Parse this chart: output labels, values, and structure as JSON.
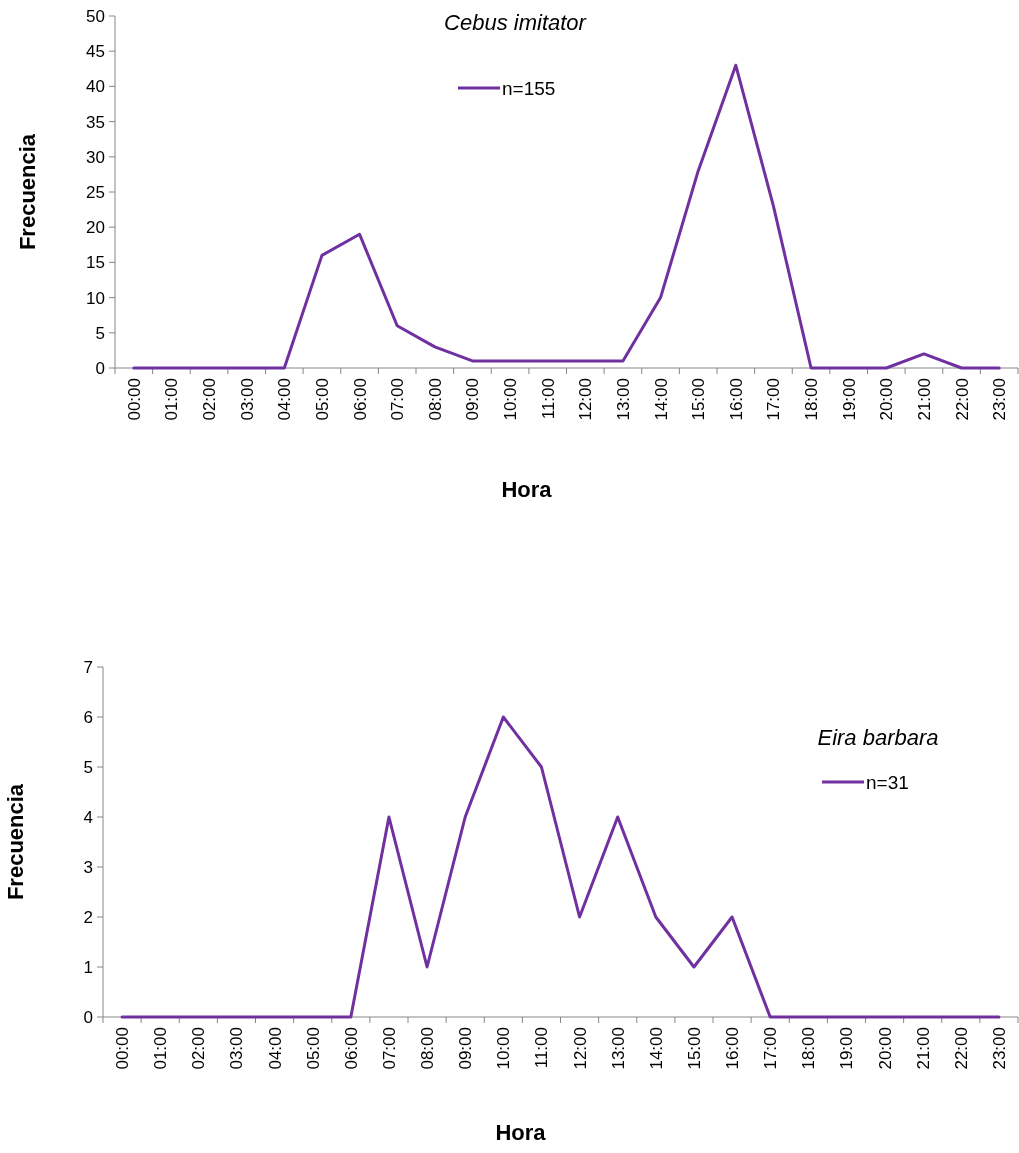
{
  "chart_data": [
    {
      "type": "line",
      "title": "Cebus imitator",
      "xlabel": "Hora",
      "ylabel": "Frecuencia",
      "categories": [
        "00:00",
        "01:00",
        "02:00",
        "03:00",
        "04:00",
        "05:00",
        "06:00",
        "07:00",
        "08:00",
        "09:00",
        "10:00",
        "11:00",
        "12:00",
        "13:00",
        "14:00",
        "15:00",
        "16:00",
        "17:00",
        "18:00",
        "19:00",
        "20:00",
        "21:00",
        "22:00",
        "23:00"
      ],
      "series": [
        {
          "name": "n=155",
          "color": "#7030a0",
          "values": [
            0,
            0,
            0,
            0,
            0,
            16,
            19,
            6,
            3,
            1,
            1,
            1,
            1,
            1,
            10,
            28,
            43,
            23,
            0,
            0,
            0,
            2,
            0,
            0
          ]
        }
      ],
      "ylim": [
        0,
        50
      ],
      "yticks": [
        0,
        5,
        10,
        15,
        20,
        25,
        30,
        35,
        40,
        45,
        50
      ],
      "grid": false,
      "legend": "top",
      "marker": "none",
      "line_style": "solid"
    },
    {
      "type": "line",
      "title": "Eira barbara",
      "xlabel": "Hora",
      "ylabel": "Frecuencia",
      "categories": [
        "00:00",
        "01:00",
        "02:00",
        "03:00",
        "04:00",
        "05:00",
        "06:00",
        "07:00",
        "08:00",
        "09:00",
        "10:00",
        "11:00",
        "12:00",
        "13:00",
        "14:00",
        "15:00",
        "16:00",
        "17:00",
        "18:00",
        "19:00",
        "20:00",
        "21:00",
        "22:00",
        "23:00"
      ],
      "series": [
        {
          "name": "n=31",
          "color": "#7030a0",
          "values": [
            0,
            0,
            0,
            0,
            0,
            0,
            0,
            4,
            1,
            4,
            6,
            5,
            2,
            4,
            2,
            1,
            2,
            0,
            0,
            0,
            0,
            0,
            0,
            0
          ]
        }
      ],
      "ylim": [
        0,
        7
      ],
      "yticks": [
        0,
        1,
        2,
        3,
        4,
        5,
        6,
        7
      ],
      "grid": false,
      "legend": "top right",
      "marker": "none",
      "line_style": "solid"
    }
  ]
}
